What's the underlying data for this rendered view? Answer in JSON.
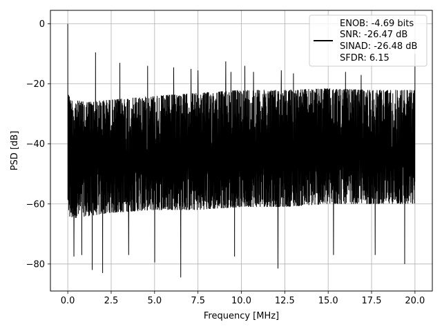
{
  "chart_data": {
    "type": "line",
    "title": "",
    "xlabel": "Frequency [MHz]",
    "ylabel": "PSD [dB]",
    "xlim": [
      -1.0,
      21.0
    ],
    "ylim": [
      -89.0,
      4.5
    ],
    "x_ticks": [
      0.0,
      2.5,
      5.0,
      7.5,
      10.0,
      12.5,
      15.0,
      17.5,
      20.0
    ],
    "x_tick_labels": [
      "0.0",
      "2.5",
      "5.0",
      "7.5",
      "10.0",
      "12.5",
      "15.0",
      "17.5",
      "20.0"
    ],
    "y_ticks": [
      0,
      -20,
      -40,
      -60,
      -80
    ],
    "y_tick_labels": [
      "0",
      "−20",
      "−40",
      "−60",
      "−80"
    ],
    "grid": true,
    "legend_position": "top-right",
    "legend": [
      "ENOB: -4.69 bits",
      "SNR: -26.47 dB",
      "SINAD: -26.48 dB",
      "SFDR: 6.15"
    ],
    "series": [
      {
        "color": "#000000",
        "x_range": [
          0.0,
          20.0
        ],
        "upper_envelope": [
          [
            0.0,
            -25
          ],
          [
            1.0,
            -26
          ],
          [
            3.0,
            -25
          ],
          [
            5.0,
            -24
          ],
          [
            7.5,
            -23
          ],
          [
            10.0,
            -22
          ],
          [
            12.5,
            -22
          ],
          [
            15.0,
            -21.5
          ],
          [
            17.5,
            -22
          ],
          [
            20.0,
            -22
          ]
        ],
        "lower_envelope": [
          [
            0.0,
            -65
          ],
          [
            2.5,
            -63
          ],
          [
            5.0,
            -62
          ],
          [
            7.5,
            -62
          ],
          [
            10.0,
            -61
          ],
          [
            12.5,
            -61
          ],
          [
            15.0,
            -60
          ],
          [
            17.5,
            -60
          ],
          [
            20.0,
            -60
          ]
        ],
        "peaks": [
          [
            0.0,
            0.0
          ],
          [
            1.6,
            -9.5
          ],
          [
            3.0,
            -13
          ],
          [
            4.6,
            -14
          ],
          [
            6.1,
            -14.5
          ],
          [
            7.1,
            -15
          ],
          [
            7.5,
            -15.5
          ],
          [
            9.1,
            -12.5
          ],
          [
            9.4,
            -16
          ],
          [
            10.2,
            -14
          ],
          [
            10.7,
            -16
          ],
          [
            12.3,
            -15.5
          ],
          [
            13.0,
            -16.5
          ],
          [
            16.0,
            -16
          ],
          [
            16.9,
            -17
          ],
          [
            20.0,
            -10
          ]
        ],
        "dips": [
          [
            0.35,
            -77.5
          ],
          [
            0.8,
            -77
          ],
          [
            1.4,
            -82
          ],
          [
            2.0,
            -83
          ],
          [
            3.5,
            -77
          ],
          [
            5.0,
            -79.5
          ],
          [
            6.5,
            -84.5
          ],
          [
            9.6,
            -77.5
          ],
          [
            12.1,
            -81.5
          ],
          [
            15.3,
            -77
          ],
          [
            17.7,
            -77
          ],
          [
            19.4,
            -80
          ]
        ]
      }
    ]
  }
}
